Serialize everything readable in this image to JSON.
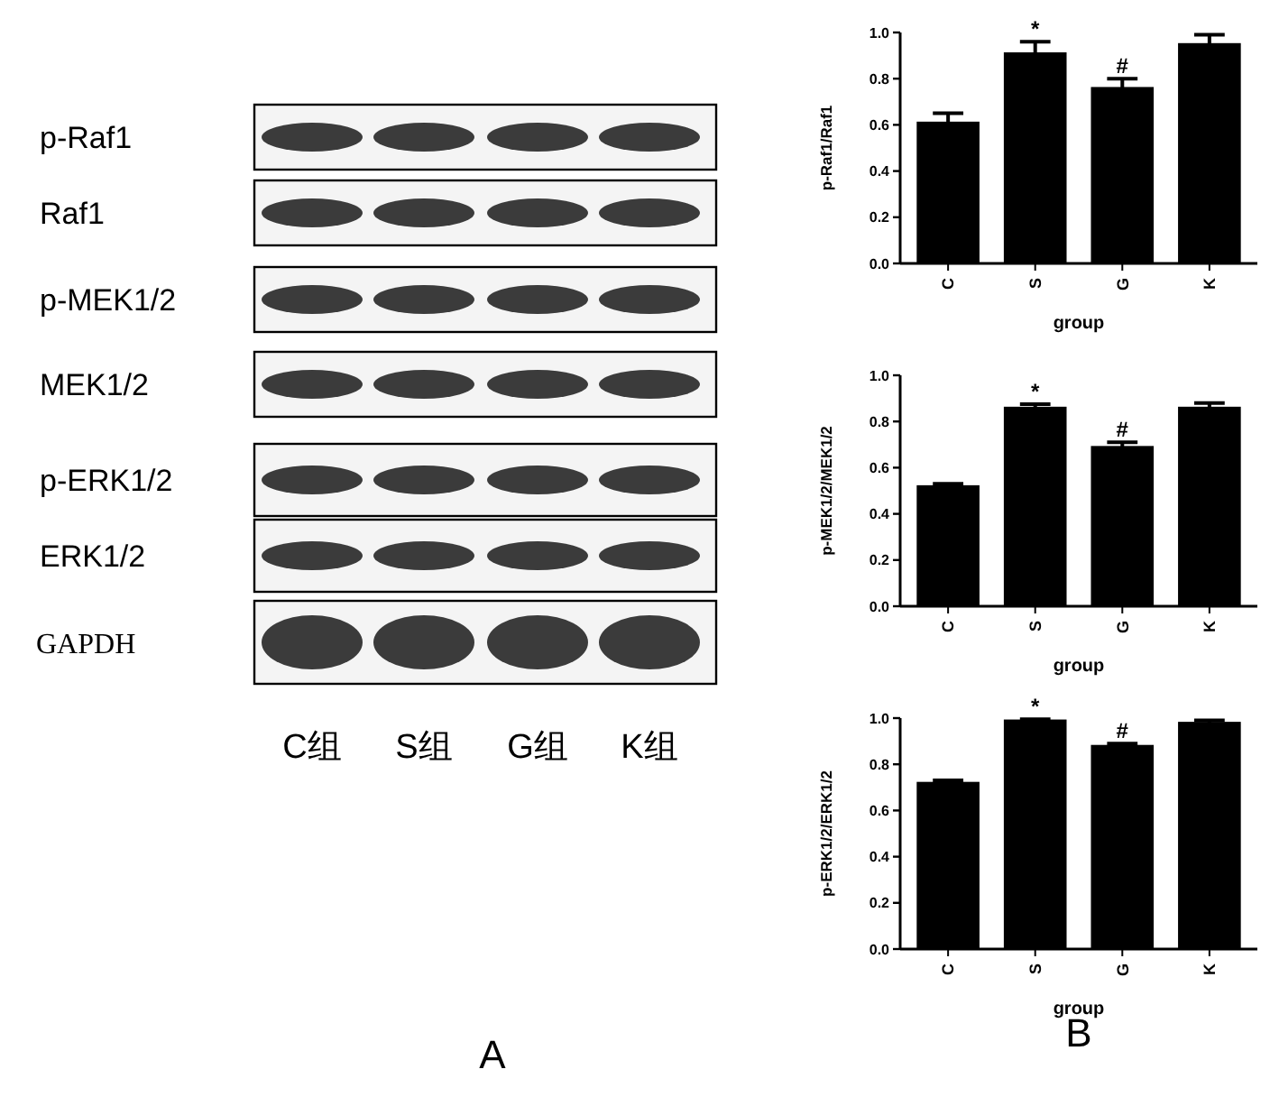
{
  "chart_data": [
    {
      "type": "other",
      "annotations": [
        "p-Raf1",
        "Raf1",
        "p-MEK1/2",
        "MEK1/2",
        "p-ERK1/2",
        "ERK1/2",
        "GAPDH",
        "C组",
        "S组",
        "G组",
        "K组",
        "A"
      ]
    },
    {
      "type": "bar",
      "ylabel": "p-Raf1/Raf1",
      "xlabel": "group",
      "categories": [
        "C",
        "S",
        "G",
        "K"
      ],
      "values": [
        0.61,
        0.91,
        0.76,
        0.95
      ],
      "errors": [
        0.04,
        0.05,
        0.04,
        0.04
      ],
      "color": "#000000",
      "ylim": [
        0,
        1
      ],
      "yticks": [
        {
          "value": 0,
          "label": "0.0"
        },
        {
          "value": 0.2,
          "label": "0.2"
        },
        {
          "value": 0.4,
          "label": "0.4"
        },
        {
          "value": 0.6,
          "label": "0.6"
        },
        {
          "value": 0.8,
          "label": "0.8"
        },
        {
          "value": 1,
          "label": "1.0"
        }
      ],
      "grid": false,
      "annotations": [
        {
          "text": "*",
          "x": "S",
          "y": 0.96
        },
        {
          "text": "#",
          "x": "G",
          "y": 0.8
        }
      ]
    },
    {
      "type": "bar",
      "ylabel": "p-MEK1/2/MEK1/2",
      "xlabel": "group",
      "categories": [
        "C",
        "S",
        "G",
        "K"
      ],
      "values": [
        0.52,
        0.86,
        0.69,
        0.86
      ],
      "errors": [
        0.01,
        0.015,
        0.02,
        0.02
      ],
      "color": "#000000",
      "ylim": [
        0,
        1
      ],
      "yticks": [
        {
          "value": 0,
          "label": "0.0"
        },
        {
          "value": 0.2,
          "label": "0.2"
        },
        {
          "value": 0.4,
          "label": "0.4"
        },
        {
          "value": 0.6,
          "label": "0.6"
        },
        {
          "value": 0.8,
          "label": "0.8"
        },
        {
          "value": 1,
          "label": "1.0"
        }
      ],
      "grid": false,
      "annotations": [
        {
          "text": "*",
          "x": "S",
          "y": 0.875
        },
        {
          "text": "#",
          "x": "G",
          "y": 0.71
        }
      ]
    },
    {
      "type": "bar",
      "ylabel": "p-ERK1/2/ERK1/2",
      "xlabel": "group",
      "categories": [
        "C",
        "S",
        "G",
        "K"
      ],
      "values": [
        0.72,
        0.99,
        0.88,
        0.98
      ],
      "errors": [
        0.01,
        0.005,
        0.01,
        0.01
      ],
      "color": "#000000",
      "ylim": [
        0,
        1
      ],
      "yticks": [
        {
          "value": 0,
          "label": "0.0"
        },
        {
          "value": 0.2,
          "label": "0.2"
        },
        {
          "value": 0.4,
          "label": "0.4"
        },
        {
          "value": 0.6,
          "label": "0.6"
        },
        {
          "value": 0.8,
          "label": "0.8"
        },
        {
          "value": 1,
          "label": "1.0"
        }
      ],
      "grid": false,
      "annotations": [
        {
          "text": "*",
          "x": "S",
          "y": 0.995
        },
        {
          "text": "#",
          "x": "G",
          "y": 0.89
        },
        "B"
      ]
    }
  ]
}
